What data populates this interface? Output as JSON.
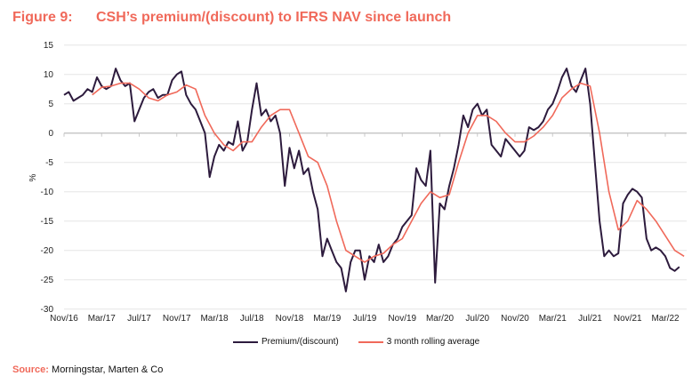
{
  "title": {
    "number": "Figure 9:",
    "text": "CSH’s premium/(discount) to IFRS NAV since launch"
  },
  "source": {
    "label": "Source:",
    "text": "Morningstar, Marten & Co"
  },
  "chart_data": {
    "type": "line",
    "ylabel": "%",
    "ylim": [
      -30,
      15
    ],
    "yticks": [
      15,
      10,
      5,
      0,
      -5,
      -10,
      -15,
      -20,
      -25,
      -30
    ],
    "xtick_labels": [
      "Nov/16",
      "Mar/17",
      "Jul/17",
      "Nov/17",
      "Mar/18",
      "Jul/18",
      "Nov/18",
      "Mar/19",
      "Jul/19",
      "Nov/19",
      "Mar/20",
      "Jul/20",
      "Nov/20",
      "Mar/21",
      "Jul/21",
      "Nov/21",
      "Mar/22"
    ],
    "x_unit": "months since Nov/16",
    "grid": "horizontal",
    "legend_position": "bottom",
    "colors": {
      "premium": "#2d1b3d",
      "average": "#f0695a"
    },
    "series": [
      {
        "name": "Premium/(discount)",
        "x_start": 0,
        "x_step": 0.5,
        "values": [
          6.5,
          7,
          5.5,
          6,
          6.5,
          7.5,
          7,
          9.5,
          8,
          7.5,
          8,
          11,
          9,
          8,
          8.5,
          2,
          4,
          6,
          7,
          7.5,
          6,
          6.5,
          6.5,
          9,
          10,
          10.5,
          6.5,
          5,
          4,
          2,
          0,
          -7.5,
          -4,
          -2,
          -3,
          -1.5,
          -2,
          2,
          -3,
          -1.5,
          4,
          8.5,
          3,
          4,
          2,
          3,
          0,
          -9,
          -2.5,
          -6,
          -3,
          -7,
          -6,
          -10,
          -13,
          -21,
          -18,
          -20,
          -22,
          -23,
          -27,
          -22,
          -20,
          -20,
          -25,
          -21,
          -22,
          -19,
          -22,
          -21,
          -19,
          -18,
          -16,
          -15,
          -14,
          -6,
          -8,
          -9,
          -3,
          -25.5,
          -12,
          -13,
          -9,
          -6,
          -2,
          3,
          1,
          4,
          5,
          3,
          4,
          -2,
          -3,
          -4,
          -1,
          -2,
          -3,
          -4,
          -3,
          1,
          0.5,
          1,
          2,
          4,
          5,
          7,
          9.5,
          11,
          8,
          7,
          9,
          11,
          5,
          -5,
          -15,
          -21,
          -20,
          -21,
          -20.5,
          -12,
          -10.5,
          -9.5,
          -10,
          -11,
          -18,
          -20,
          -19.5,
          -20,
          -21,
          -23,
          -23.5,
          -22.8
        ]
      },
      {
        "name": "3 month rolling average",
        "x_start": 3,
        "x_step": 1,
        "values": [
          6.5,
          7.8,
          8,
          8.5,
          8.5,
          7.5,
          6,
          5.5,
          6.5,
          7,
          8.2,
          7.5,
          3,
          0,
          -2,
          -3,
          -1.5,
          -1.5,
          1,
          3,
          4,
          4,
          0,
          -4,
          -5,
          -9,
          -15,
          -20,
          -21,
          -22,
          -21,
          -20.5,
          -19,
          -18,
          -15,
          -12,
          -10,
          -11,
          -10.5,
          -5,
          0,
          3,
          3,
          2,
          0,
          -1.5,
          -1.5,
          -0.5,
          1,
          3,
          6,
          7.5,
          8.5,
          8,
          0,
          -10,
          -16.5,
          -15,
          -11.5,
          -13,
          -15,
          -17.5,
          -20,
          -21
        ]
      }
    ]
  }
}
